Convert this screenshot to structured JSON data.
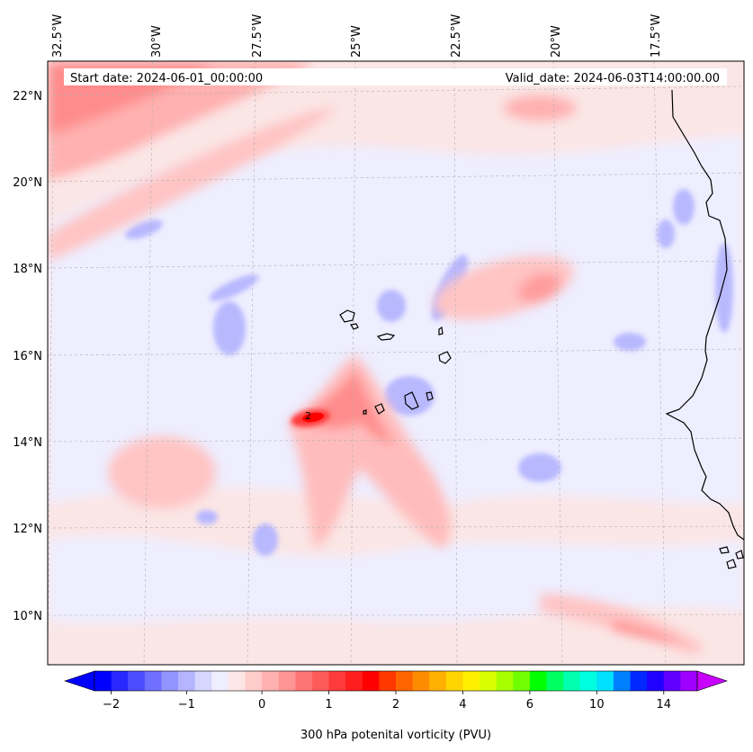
{
  "map": {
    "start_date_label": "Start date: 2024-06-01_00:00:00",
    "valid_date_label": "Valid_date: 2024-06-03T14:00:00.00",
    "longitude_labels": [
      "32.5°W",
      "30°W",
      "27.5°W",
      "25°W",
      "22.5°W",
      "20°W",
      "17.5°W"
    ],
    "latitude_labels": [
      "22°N",
      "20°N",
      "18°N",
      "16°N",
      "14°N",
      "12°N",
      "10°N"
    ],
    "contour_annotation": "2",
    "colors": {
      "land_outline": "#000000",
      "background_field": "#fbe3e3",
      "gridline": "#b0b0b0"
    }
  },
  "colorbar": {
    "label": "300 hPa potenital vorticity (PVU)",
    "tick_labels": [
      "−2",
      "−1",
      "0",
      "1",
      "2",
      "4",
      "6",
      "10",
      "14"
    ],
    "colors": [
      "#0000ff",
      "#2828ff",
      "#4c4cff",
      "#7070ff",
      "#9494ff",
      "#b4b4ff",
      "#d6d6ff",
      "#eeeeff",
      "#ffe6e6",
      "#ffcccc",
      "#ffb0b0",
      "#ff9595",
      "#ff7575",
      "#ff5a5a",
      "#ff3a3a",
      "#ff1e1e",
      "#ff0000",
      "#ff3800",
      "#ff6400",
      "#ff8c00",
      "#ffb000",
      "#ffd400",
      "#fff000",
      "#d8ff00",
      "#a8ff00",
      "#70ff00",
      "#00ff00",
      "#00ff60",
      "#00ffb0",
      "#00ffe0",
      "#00e0ff",
      "#0080ff",
      "#0028ff",
      "#2000ff",
      "#6000ff",
      "#a000ff"
    ],
    "extend_low_color": "#0000ff",
    "extend_high_color": "#c800ff"
  }
}
